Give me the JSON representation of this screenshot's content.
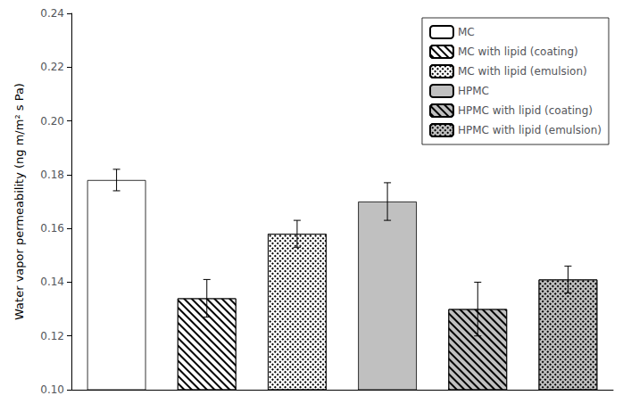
{
  "chart_data": {
    "type": "bar",
    "ylabel": "Water vapor permeability (ng m/m² s Pa)",
    "categories": [
      "MC",
      "MC with lipid (coating)",
      "MC with lipid (emulsion)",
      "HPMC",
      "HPMC with lipid (coating)",
      "HPMC with lipid (emulsion)"
    ],
    "values": [
      0.178,
      0.134,
      0.158,
      0.17,
      0.13,
      0.141
    ],
    "errors": [
      0.004,
      0.007,
      0.005,
      0.007,
      0.01,
      0.005
    ],
    "colors": [
      "white",
      "white",
      "white",
      "#c0c0c0",
      "#c0c0c0",
      "#c0c0c0"
    ],
    "ylim": [
      0.1,
      0.24
    ],
    "yticks": [
      {
        "value": 0.1,
        "label": "0.10"
      },
      0.12,
      0.14,
      0.16,
      0.18,
      {
        "value": 0.2,
        "label": "0.20"
      },
      0.22,
      0.24
    ],
    "legend": "upper right",
    "tick_labels": "y",
    "grid": false
  }
}
